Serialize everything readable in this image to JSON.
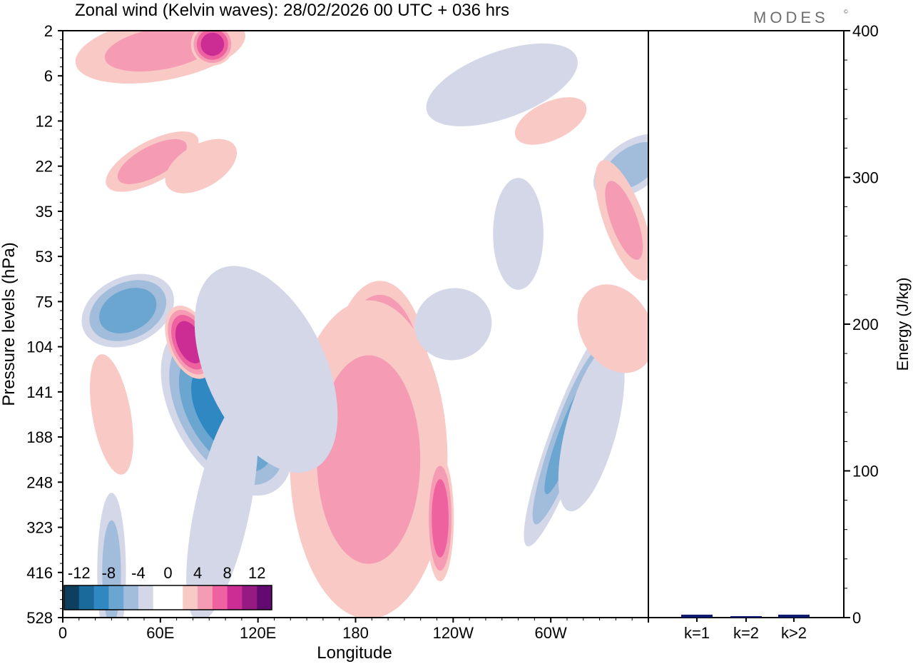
{
  "chart_data": [
    {
      "type": "heatmap",
      "title": "Zonal wind (Kelvin waves):  28/02/2026  00 UTC  + 036 hrs",
      "xlabel": "Longitude",
      "ylabel": "Pressure levels (hPa)",
      "x_ticks": [
        "0",
        "60E",
        "120E",
        "180",
        "120W",
        "60W"
      ],
      "x_tick_values": [
        0,
        60,
        120,
        180,
        240,
        300
      ],
      "xlim": [
        0,
        360
      ],
      "y_ticks": [
        "2",
        "6",
        "12",
        "22",
        "35",
        "53",
        "75",
        "104",
        "141",
        "188",
        "248",
        "323",
        "416",
        "528"
      ],
      "colorbar": {
        "labels": [
          "-12",
          "-8",
          "-4",
          "0",
          "4",
          "8",
          "12"
        ],
        "colors": [
          "#0f3f5e",
          "#1b6a9c",
          "#2f88c2",
          "#6aa6d0",
          "#a2bddc",
          "#d3d7e8",
          "#ffffff",
          "#ffffff",
          "#f9c9c5",
          "#f59bb4",
          "#ee62a0",
          "#cc2d94",
          "#951a82",
          "#620a6f"
        ]
      },
      "blobs": [
        {
          "lon": 96,
          "lev": 8.2,
          "rx": 22,
          "ry": 1.1,
          "rot": -32,
          "v": -12.5
        },
        {
          "lon": 101,
          "lev": 8.4,
          "rx": 35,
          "ry": 2.2,
          "rot": -30,
          "v": -9
        },
        {
          "lon": 40,
          "lev": 6.2,
          "rx": 32,
          "ry": 0.8,
          "rot": -25,
          "v": -7
        },
        {
          "lon": 78,
          "lev": 6.9,
          "rx": 14,
          "ry": 0.9,
          "rot": -22,
          "v": 9.5
        },
        {
          "lon": 195,
          "lev": 8.0,
          "rx": 33,
          "ry": 2.6,
          "rot": 0,
          "v": 9
        },
        {
          "lon": 195,
          "lev": 8.1,
          "rx": 12,
          "ry": 0.9,
          "rot": 0,
          "v": 13
        },
        {
          "lon": 188,
          "lev": 9.5,
          "rx": 55,
          "ry": 4.0,
          "rot": 0,
          "v": 4
        },
        {
          "lon": 310,
          "lev": 9.0,
          "rx": 12,
          "ry": 2.8,
          "rot": 20,
          "v": -6
        },
        {
          "lon": 325,
          "lev": 8.8,
          "rx": 18,
          "ry": 2.2,
          "rot": 15,
          "v": -3.5
        },
        {
          "lon": 55,
          "lev": 2.9,
          "rx": 35,
          "ry": 0.5,
          "rot": -28,
          "v": 5
        },
        {
          "lon": 85,
          "lev": 3.0,
          "rx": 28,
          "ry": 0.55,
          "rot": -30,
          "v": 3.5
        },
        {
          "lon": 280,
          "lev": 4.5,
          "rx": 20,
          "ry": 1.6,
          "rot": 0,
          "v": -2
        },
        {
          "lon": 350,
          "lev": 3.0,
          "rx": 30,
          "ry": 0.6,
          "rot": -35,
          "v": -5
        },
        {
          "lon": 345,
          "lev": 4.2,
          "rx": 14,
          "ry": 1.6,
          "rot": -20,
          "v": 4
        },
        {
          "lon": 98,
          "lev": 10.6,
          "rx": 20,
          "ry": 3.0,
          "rot": 12,
          "v": -3
        },
        {
          "lon": 30,
          "lev": 12.0,
          "rx": 10,
          "ry": 2.0,
          "rot": 0,
          "v": -4
        },
        {
          "lon": 232,
          "lev": 10.8,
          "rx": 9,
          "ry": 1.5,
          "rot": 0,
          "v": 7
        },
        {
          "lon": 125,
          "lev": 7.5,
          "rx": 45,
          "ry": 3.0,
          "rot": -25,
          "v": -2.5
        },
        {
          "lon": 270,
          "lev": 1.2,
          "rx": 60,
          "ry": 0.9,
          "rot": -20,
          "v": -2.5
        },
        {
          "lon": 60,
          "lev": 0.4,
          "rx": 60,
          "ry": 0.8,
          "rot": -10,
          "v": 4
        },
        {
          "lon": 92,
          "lev": 0.3,
          "rx": 14,
          "ry": 0.5,
          "rot": -10,
          "v": 9
        },
        {
          "lon": 30,
          "lev": 8.5,
          "rx": 14,
          "ry": 1.6,
          "rot": -10,
          "v": 3
        },
        {
          "lon": 340,
          "lev": 6.6,
          "rx": 25,
          "ry": 1.2,
          "rot": -30,
          "v": 3.5
        },
        {
          "lon": 300,
          "lev": 2.0,
          "rx": 28,
          "ry": 0.5,
          "rot": -25,
          "v": 3
        },
        {
          "lon": 240,
          "lev": 6.5,
          "rx": 30,
          "ry": 1.0,
          "rot": -15,
          "v": -2.2
        }
      ]
    },
    {
      "type": "bar",
      "ylabel": "Energy (J/kg)",
      "categories": [
        "k=1",
        "k=2",
        "k>2"
      ],
      "values": [
        2,
        1,
        2
      ],
      "ylim": [
        0,
        400
      ],
      "y_ticks": [
        "0",
        "100",
        "200",
        "300",
        "400"
      ],
      "y_tick_values": [
        0,
        100,
        200,
        300,
        400
      ],
      "bar_color": "#0d1b6e"
    }
  ],
  "brand": "MODES",
  "brand_mark": "©"
}
